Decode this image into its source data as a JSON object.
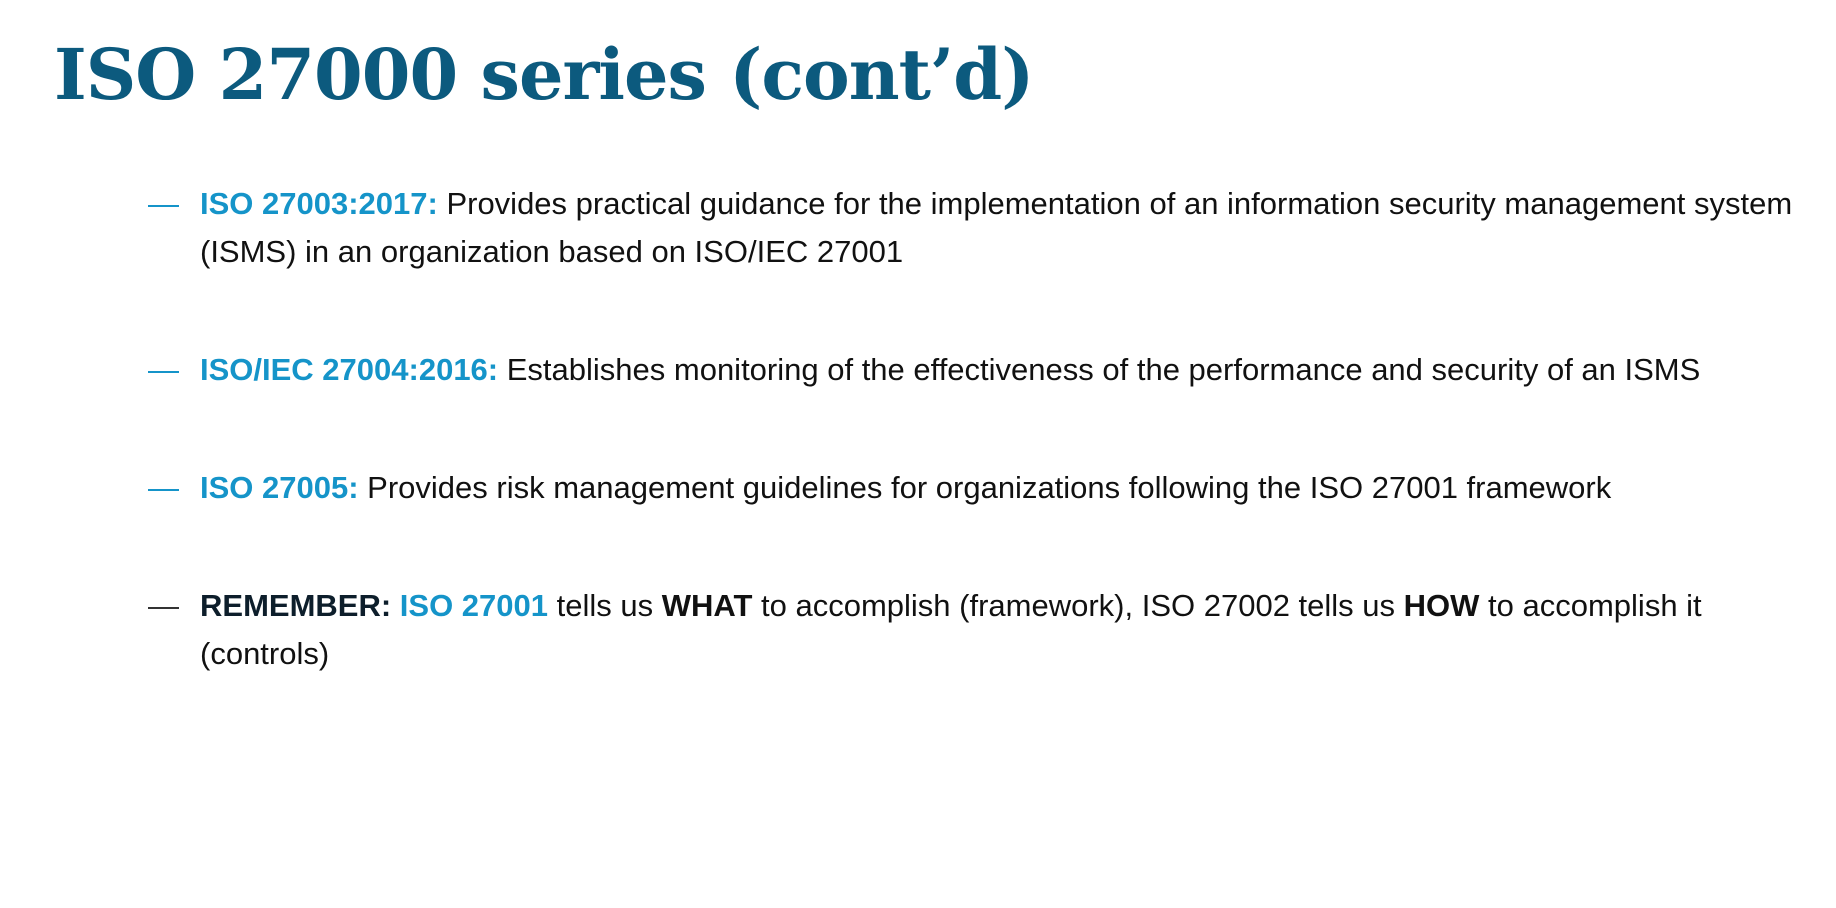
{
  "slide": {
    "title": "ISO 27000 series (cont’d)",
    "bullets": [
      {
        "term": "ISO 27003:2017:",
        "text": " Provides practical guidance for the implementation of an information security management system (ISMS) in an organization based on ISO/IEC 27001"
      },
      {
        "term": "ISO/IEC 27004:2016:",
        "text": " Establishes monitoring of the effectiveness of the performance and security of an ISMS"
      },
      {
        "term": "ISO 27005:",
        "text": " Provides risk management guidelines for organizations following the ISO 27001 framework"
      }
    ],
    "remember": {
      "label": "REMEMBER:",
      "term": "ISO 27001",
      "text1": " tells us ",
      "what": "WHAT",
      "text2": " to accomplish (framework), ISO 27002 tells us ",
      "how": "HOW",
      "text3": " to accomplish it (controls)"
    },
    "dash": "—"
  },
  "colors": {
    "title": "#0c5a7e",
    "accent": "#1594c9",
    "body_text": "#111111"
  }
}
